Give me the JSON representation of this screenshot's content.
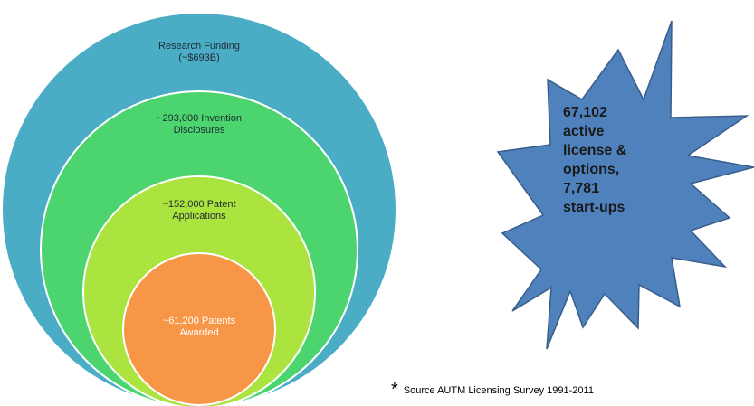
{
  "colors": {
    "funding": "#4BACC6",
    "disclosures": "#4CD46E",
    "applications": "#ABE33F",
    "awarded": "#F79646",
    "star_fill": "#4F81BD",
    "star_stroke": "#385D8A",
    "circle_border": "#FFFFFF"
  },
  "circles": [
    {
      "id": "funding",
      "lines": [
        "Research Funding",
        "(~$693B)"
      ]
    },
    {
      "id": "disclosures",
      "lines": [
        "~293,000 Invention",
        "Disclosures"
      ]
    },
    {
      "id": "applications",
      "lines": [
        "~152,000 Patent",
        "Applications"
      ]
    },
    {
      "id": "awarded",
      "lines": [
        "~61,200 Patents",
        "Awarded"
      ]
    }
  ],
  "star": {
    "lines": [
      "67,102",
      "active",
      "license &",
      "options,",
      "7,781",
      "start-ups"
    ]
  },
  "footnote": {
    "marker": "*",
    "text": "Source AUTM Licensing Survey 1991-2011"
  }
}
